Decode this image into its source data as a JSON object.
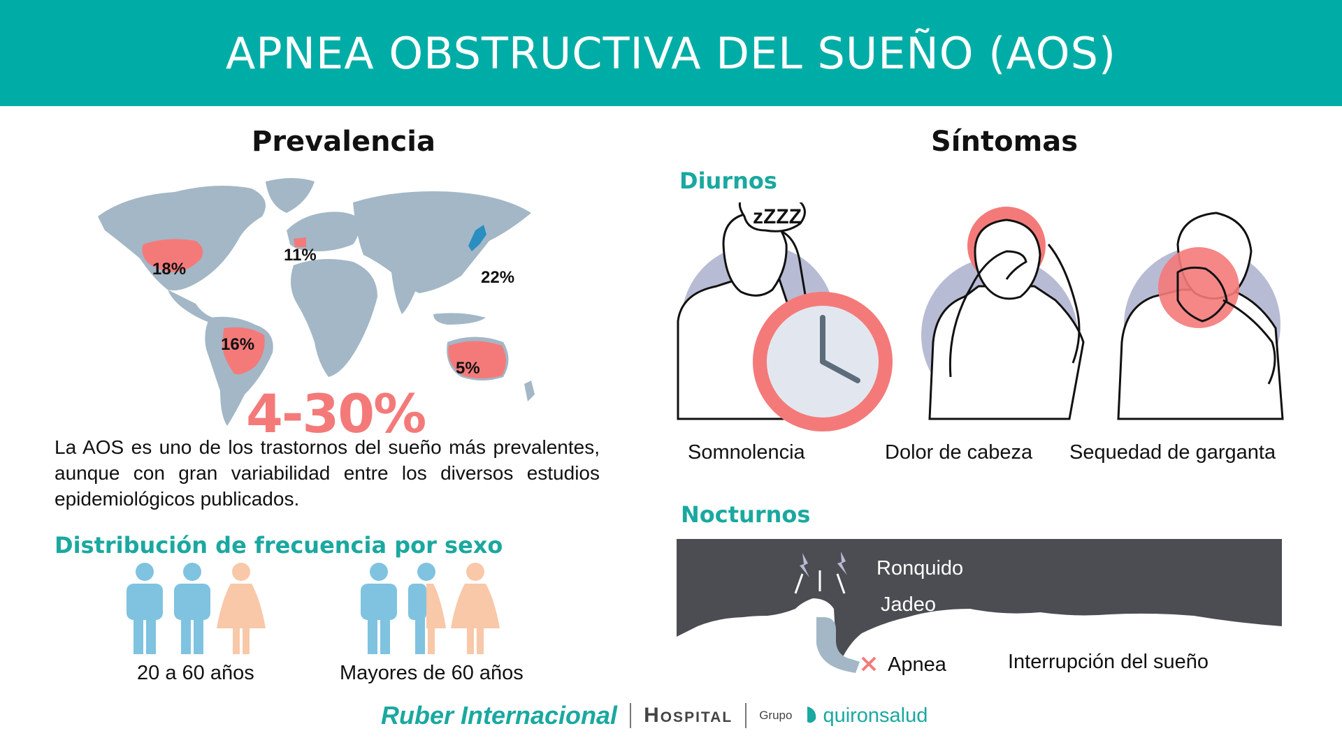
{
  "header": {
    "title": "APNEA OBSTRUCTIVA DEL SUEÑO (AOS)"
  },
  "prevalence": {
    "title": "Prevalencia",
    "regions": [
      {
        "label": "18%"
      },
      {
        "label": "11%"
      },
      {
        "label": "22%"
      },
      {
        "label": "16%"
      },
      {
        "label": "5%"
      }
    ],
    "range": "4-30%",
    "description": "La AOS es uno de los trastornos del sueño más prevalentes, aunque con gran variabilidad entre los diversos estudios epidemiológicos publicados."
  },
  "sex_distribution": {
    "title": "Distribución de frecuencia por  sexo",
    "groups": [
      {
        "label": "20 a 60 años"
      },
      {
        "label": "Mayores de 60 años"
      }
    ]
  },
  "symptoms": {
    "title": "Síntomas",
    "daytime": {
      "title": "Diurnos",
      "items": [
        {
          "label": "Somnolencia",
          "icon": "sleepy-clock-icon"
        },
        {
          "label": "Dolor de cabeza",
          "icon": "headache-icon"
        },
        {
          "label": "Sequedad de garganta",
          "icon": "sore-throat-icon"
        }
      ],
      "sleep_text": "zZZZ"
    },
    "nighttime": {
      "title": "Nocturnos",
      "labels": {
        "snore": "Ronquido",
        "gasp": "Jadeo",
        "apnea": "Apnea",
        "interruption": "Interrupción del sueño"
      }
    }
  },
  "footer": {
    "brand": "Ruber Internacional",
    "hospital": "Hospital",
    "grupo": "Grupo",
    "quiron": "quironsalud"
  },
  "colors": {
    "teal": "#00ada6",
    "coral": "#f47a7a",
    "map_gray": "#a3b7c6",
    "male_blue": "#7fc3e0",
    "female_peach": "#f8c8a8",
    "night_gray": "#4b4d52"
  }
}
